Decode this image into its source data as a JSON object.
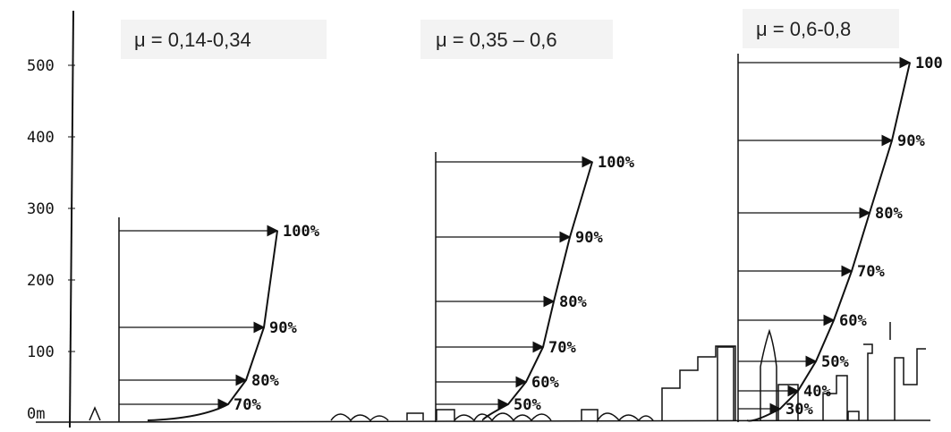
{
  "axis": {
    "ticks": [
      "500",
      "400",
      "300",
      "200",
      "100",
      "0m"
    ]
  },
  "profiles": [
    {
      "title": "μ = 0,14-0,34",
      "labels": [
        "100%",
        "90%",
        "80%",
        "70%"
      ]
    },
    {
      "title": "μ = 0,35 – 0,6",
      "labels": [
        "100%",
        "90%",
        "80%",
        "70%",
        "60%",
        "50%"
      ]
    },
    {
      "title": "μ = 0,6-0,8",
      "labels": [
        "100",
        "90%",
        "80%",
        "70%",
        "60%",
        "50%",
        "40%",
        "30%"
      ]
    }
  ]
}
